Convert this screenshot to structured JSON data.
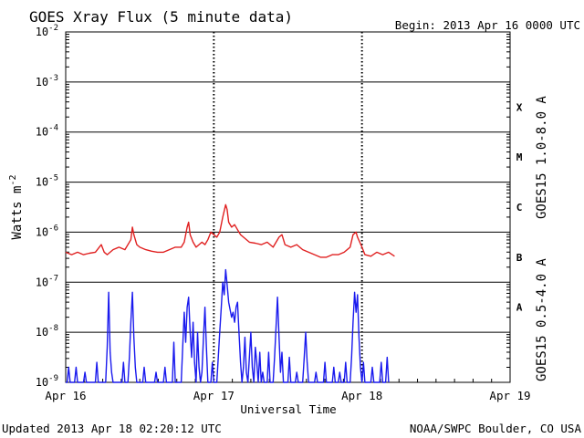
{
  "chart_data": {
    "type": "line",
    "title": "GOES Xray Flux (5 minute data)",
    "begin_label": "Begin:  2013 Apr 16 0000 UTC",
    "ylabel": "Watts m",
    "ylabel_sup": "-2",
    "xlabel": "Universal Time",
    "updated": "Updated 2013 Apr 18 02:20:12 UTC",
    "credit": "NOAA/SWPC Boulder, CO USA",
    "yscale": "log",
    "ylim": [
      1e-09,
      0.01
    ],
    "y_ticks": [
      {
        "base": "10",
        "exp": "-9",
        "value": -9
      },
      {
        "base": "10",
        "exp": "-8",
        "value": -8
      },
      {
        "base": "10",
        "exp": "-7",
        "value": -7
      },
      {
        "base": "10",
        "exp": "-6",
        "value": -6
      },
      {
        "base": "10",
        "exp": "-5",
        "value": -5
      },
      {
        "base": "10",
        "exp": "-4",
        "value": -4
      },
      {
        "base": "10",
        "exp": "-3",
        "value": -3
      },
      {
        "base": "10",
        "exp": "-2",
        "value": -2
      }
    ],
    "x_ticks": [
      "Apr 16",
      "Apr 17",
      "Apr 18",
      "Apr 19"
    ],
    "xlim": [
      0,
      3
    ],
    "flare_classes": [
      {
        "label": "A",
        "logflux": -7.5
      },
      {
        "label": "B",
        "logflux": -6.5
      },
      {
        "label": "C",
        "logflux": -5.5
      },
      {
        "label": "M",
        "logflux": -4.5
      },
      {
        "label": "X",
        "logflux": -3.5
      }
    ],
    "series": [
      {
        "name": "GOES15 1.0-8.0 A",
        "color": "#e02020",
        "points": [
          [
            0.0,
            -6.4
          ],
          [
            0.04,
            -6.45
          ],
          [
            0.08,
            -6.4
          ],
          [
            0.12,
            -6.45
          ],
          [
            0.16,
            -6.42
          ],
          [
            0.2,
            -6.4
          ],
          [
            0.24,
            -6.25
          ],
          [
            0.26,
            -6.4
          ],
          [
            0.28,
            -6.45
          ],
          [
            0.32,
            -6.35
          ],
          [
            0.36,
            -6.3
          ],
          [
            0.4,
            -6.35
          ],
          [
            0.44,
            -6.15
          ],
          [
            0.45,
            -5.9
          ],
          [
            0.46,
            -6.05
          ],
          [
            0.48,
            -6.25
          ],
          [
            0.5,
            -6.3
          ],
          [
            0.54,
            -6.35
          ],
          [
            0.58,
            -6.38
          ],
          [
            0.62,
            -6.4
          ],
          [
            0.66,
            -6.4
          ],
          [
            0.7,
            -6.35
          ],
          [
            0.74,
            -6.3
          ],
          [
            0.78,
            -6.3
          ],
          [
            0.8,
            -6.2
          ],
          [
            0.82,
            -5.9
          ],
          [
            0.83,
            -5.8
          ],
          [
            0.84,
            -6.05
          ],
          [
            0.86,
            -6.2
          ],
          [
            0.88,
            -6.3
          ],
          [
            0.9,
            -6.25
          ],
          [
            0.92,
            -6.2
          ],
          [
            0.94,
            -6.25
          ],
          [
            0.96,
            -6.15
          ],
          [
            0.98,
            -6.0
          ],
          [
            1.0,
            -6.05
          ],
          [
            1.02,
            -6.1
          ],
          [
            1.04,
            -6.0
          ],
          [
            1.06,
            -5.7
          ],
          [
            1.08,
            -5.45
          ],
          [
            1.09,
            -5.55
          ],
          [
            1.1,
            -5.8
          ],
          [
            1.12,
            -5.9
          ],
          [
            1.14,
            -5.85
          ],
          [
            1.16,
            -5.95
          ],
          [
            1.18,
            -6.05
          ],
          [
            1.2,
            -6.1
          ],
          [
            1.24,
            -6.2
          ],
          [
            1.28,
            -6.22
          ],
          [
            1.32,
            -6.25
          ],
          [
            1.36,
            -6.2
          ],
          [
            1.4,
            -6.3
          ],
          [
            1.44,
            -6.1
          ],
          [
            1.46,
            -6.05
          ],
          [
            1.48,
            -6.25
          ],
          [
            1.52,
            -6.3
          ],
          [
            1.56,
            -6.25
          ],
          [
            1.6,
            -6.35
          ],
          [
            1.64,
            -6.4
          ],
          [
            1.68,
            -6.45
          ],
          [
            1.72,
            -6.5
          ],
          [
            1.76,
            -6.5
          ],
          [
            1.8,
            -6.45
          ],
          [
            1.84,
            -6.45
          ],
          [
            1.88,
            -6.4
          ],
          [
            1.92,
            -6.3
          ],
          [
            1.94,
            -6.05
          ],
          [
            1.96,
            -6.0
          ],
          [
            1.97,
            -6.1
          ],
          [
            2.0,
            -6.3
          ],
          [
            2.02,
            -6.45
          ],
          [
            2.06,
            -6.48
          ],
          [
            2.1,
            -6.4
          ],
          [
            2.14,
            -6.45
          ],
          [
            2.18,
            -6.4
          ],
          [
            2.22,
            -6.48
          ]
        ]
      },
      {
        "name": "GOES15 0.5-4.0 A",
        "color": "#1a1aee",
        "points": [
          [
            0.0,
            -9.0
          ],
          [
            0.01,
            -9.0
          ],
          [
            0.02,
            -8.7
          ],
          [
            0.03,
            -9.0
          ],
          [
            0.06,
            -9.0
          ],
          [
            0.07,
            -8.7
          ],
          [
            0.08,
            -9.0
          ],
          [
            0.12,
            -9.0
          ],
          [
            0.13,
            -8.8
          ],
          [
            0.14,
            -9.0
          ],
          [
            0.2,
            -9.0
          ],
          [
            0.21,
            -8.6
          ],
          [
            0.22,
            -9.0
          ],
          [
            0.27,
            -9.0
          ],
          [
            0.28,
            -8.3
          ],
          [
            0.29,
            -7.2
          ],
          [
            0.3,
            -8.4
          ],
          [
            0.31,
            -8.8
          ],
          [
            0.32,
            -9.0
          ],
          [
            0.38,
            -9.0
          ],
          [
            0.39,
            -8.6
          ],
          [
            0.4,
            -9.0
          ],
          [
            0.42,
            -9.0
          ],
          [
            0.43,
            -8.5
          ],
          [
            0.44,
            -7.8
          ],
          [
            0.45,
            -7.2
          ],
          [
            0.46,
            -8.1
          ],
          [
            0.47,
            -8.7
          ],
          [
            0.48,
            -9.0
          ],
          [
            0.52,
            -9.0
          ],
          [
            0.53,
            -8.7
          ],
          [
            0.54,
            -9.0
          ],
          [
            0.6,
            -9.0
          ],
          [
            0.61,
            -8.8
          ],
          [
            0.62,
            -9.0
          ],
          [
            0.66,
            -9.0
          ],
          [
            0.67,
            -8.7
          ],
          [
            0.68,
            -9.0
          ],
          [
            0.72,
            -9.0
          ],
          [
            0.73,
            -8.2
          ],
          [
            0.74,
            -9.0
          ],
          [
            0.78,
            -9.0
          ],
          [
            0.79,
            -8.3
          ],
          [
            0.8,
            -7.6
          ],
          [
            0.81,
            -8.2
          ],
          [
            0.82,
            -7.5
          ],
          [
            0.83,
            -7.3
          ],
          [
            0.84,
            -8.0
          ],
          [
            0.85,
            -8.5
          ],
          [
            0.86,
            -7.8
          ],
          [
            0.87,
            -8.6
          ],
          [
            0.88,
            -9.0
          ],
          [
            0.89,
            -8.0
          ],
          [
            0.9,
            -8.7
          ],
          [
            0.91,
            -9.0
          ],
          [
            0.92,
            -8.8
          ],
          [
            0.93,
            -8.1
          ],
          [
            0.94,
            -7.5
          ],
          [
            0.95,
            -8.3
          ],
          [
            0.96,
            -9.0
          ],
          [
            0.98,
            -9.0
          ],
          [
            0.99,
            -8.6
          ],
          [
            1.0,
            -9.0
          ],
          [
            1.02,
            -9.0
          ],
          [
            1.03,
            -8.5
          ],
          [
            1.04,
            -8.0
          ],
          [
            1.05,
            -7.5
          ],
          [
            1.06,
            -7.0
          ],
          [
            1.07,
            -7.25
          ],
          [
            1.08,
            -6.75
          ],
          [
            1.09,
            -7.05
          ],
          [
            1.1,
            -7.4
          ],
          [
            1.11,
            -7.55
          ],
          [
            1.12,
            -7.7
          ],
          [
            1.13,
            -7.6
          ],
          [
            1.14,
            -7.8
          ],
          [
            1.15,
            -7.5
          ],
          [
            1.16,
            -7.4
          ],
          [
            1.17,
            -8.0
          ],
          [
            1.18,
            -8.6
          ],
          [
            1.19,
            -9.0
          ],
          [
            1.2,
            -8.7
          ],
          [
            1.21,
            -8.1
          ],
          [
            1.22,
            -8.8
          ],
          [
            1.23,
            -9.0
          ],
          [
            1.24,
            -8.5
          ],
          [
            1.25,
            -8.0
          ],
          [
            1.26,
            -8.7
          ],
          [
            1.27,
            -9.0
          ],
          [
            1.28,
            -8.3
          ],
          [
            1.29,
            -8.6
          ],
          [
            1.3,
            -9.0
          ],
          [
            1.31,
            -8.4
          ],
          [
            1.32,
            -9.0
          ],
          [
            1.33,
            -8.8
          ],
          [
            1.34,
            -9.0
          ],
          [
            1.36,
            -9.0
          ],
          [
            1.37,
            -8.4
          ],
          [
            1.38,
            -9.0
          ],
          [
            1.4,
            -9.0
          ],
          [
            1.41,
            -8.5
          ],
          [
            1.42,
            -7.9
          ],
          [
            1.43,
            -7.3
          ],
          [
            1.44,
            -8.1
          ],
          [
            1.45,
            -8.8
          ],
          [
            1.46,
            -8.4
          ],
          [
            1.47,
            -9.0
          ],
          [
            1.5,
            -9.0
          ],
          [
            1.51,
            -8.5
          ],
          [
            1.52,
            -9.0
          ],
          [
            1.55,
            -9.0
          ],
          [
            1.56,
            -8.8
          ],
          [
            1.57,
            -9.0
          ],
          [
            1.6,
            -9.0
          ],
          [
            1.61,
            -8.5
          ],
          [
            1.62,
            -8.0
          ],
          [
            1.63,
            -8.6
          ],
          [
            1.64,
            -9.0
          ],
          [
            1.68,
            -9.0
          ],
          [
            1.69,
            -8.8
          ],
          [
            1.7,
            -9.0
          ],
          [
            1.74,
            -9.0
          ],
          [
            1.75,
            -8.6
          ],
          [
            1.76,
            -9.0
          ],
          [
            1.8,
            -9.0
          ],
          [
            1.81,
            -8.7
          ],
          [
            1.82,
            -9.0
          ],
          [
            1.84,
            -9.0
          ],
          [
            1.85,
            -8.8
          ],
          [
            1.86,
            -9.0
          ],
          [
            1.88,
            -9.0
          ],
          [
            1.89,
            -8.6
          ],
          [
            1.9,
            -9.0
          ],
          [
            1.92,
            -9.0
          ],
          [
            1.93,
            -8.5
          ],
          [
            1.94,
            -7.8
          ],
          [
            1.95,
            -7.2
          ],
          [
            1.96,
            -7.6
          ],
          [
            1.97,
            -7.25
          ],
          [
            1.98,
            -8.1
          ],
          [
            1.99,
            -8.7
          ],
          [
            2.0,
            -9.0
          ],
          [
            2.01,
            -8.6
          ],
          [
            2.02,
            -9.0
          ],
          [
            2.06,
            -9.0
          ],
          [
            2.07,
            -8.7
          ],
          [
            2.08,
            -9.0
          ],
          [
            2.12,
            -9.0
          ],
          [
            2.13,
            -8.6
          ],
          [
            2.14,
            -9.0
          ],
          [
            2.16,
            -9.0
          ],
          [
            2.17,
            -8.5
          ],
          [
            2.18,
            -9.0
          ]
        ]
      }
    ]
  }
}
